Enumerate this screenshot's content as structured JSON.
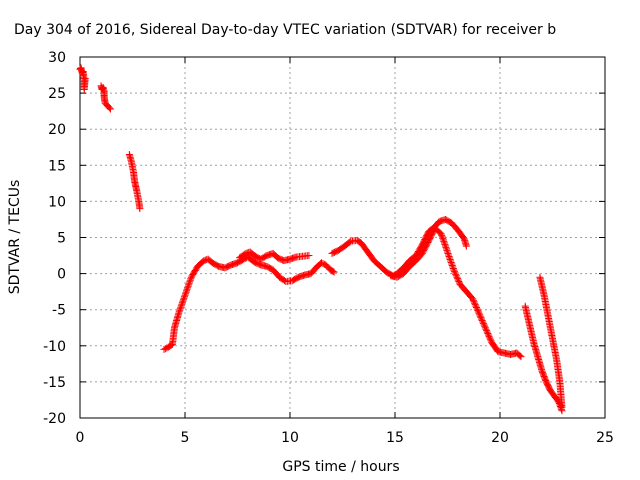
{
  "chart_data": {
    "type": "scatter",
    "title": "Day 304 of 2016, Sidereal Day-to-day VTEC variation (SDTVAR) for receiver b",
    "xlabel": "GPS time / hours",
    "ylabel": "SDTVAR / TECUs",
    "xlim": [
      0,
      25
    ],
    "ylim": [
      -20,
      30
    ],
    "x_ticks": [
      "0",
      "5",
      "10",
      "15",
      "20",
      "25"
    ],
    "y_ticks": [
      "30",
      "25",
      "20",
      "15",
      "10",
      "5",
      "0",
      "-5",
      "-10",
      "-15",
      "-20"
    ],
    "grid": true,
    "legend": "none",
    "marker": "plus",
    "color": "#ff0000",
    "series": [
      {
        "segments": [
          [
            [
              0.0,
              28.3
            ],
            [
              0.05,
              28.5
            ],
            [
              0.1,
              27.8
            ],
            [
              0.15,
              28.0
            ],
            [
              0.2,
              26.8
            ],
            [
              0.2,
              25.5
            ],
            [
              0.25,
              27.0
            ]
          ],
          [
            [
              1.0,
              26.0
            ],
            [
              1.05,
              25.5
            ],
            [
              1.1,
              25.8
            ],
            [
              1.15,
              25.2
            ],
            [
              1.15,
              24.5
            ],
            [
              1.2,
              23.6
            ],
            [
              1.45,
              22.8
            ]
          ],
          [
            [
              2.35,
              16.5
            ],
            [
              2.45,
              15.5
            ],
            [
              2.55,
              14.0
            ],
            [
              2.6,
              12.8
            ],
            [
              2.7,
              11.5
            ],
            [
              2.8,
              10.0
            ],
            [
              2.85,
              9.0
            ]
          ],
          [
            [
              4.0,
              -10.5
            ],
            [
              4.2,
              -10.2
            ],
            [
              4.4,
              -9.8
            ],
            [
              4.5,
              -7.5
            ],
            [
              4.7,
              -5.5
            ],
            [
              5.0,
              -3.0
            ],
            [
              5.3,
              -0.5
            ],
            [
              5.6,
              1.0
            ],
            [
              5.9,
              1.8
            ],
            [
              6.1,
              2.0
            ],
            [
              6.3,
              1.5
            ],
            [
              6.6,
              1.0
            ],
            [
              6.9,
              0.8
            ],
            [
              7.2,
              1.2
            ],
            [
              7.5,
              1.5
            ],
            [
              7.8,
              2.0
            ],
            [
              8.0,
              2.3
            ],
            [
              8.3,
              1.6
            ],
            [
              8.6,
              1.2
            ],
            [
              8.9,
              1.0
            ],
            [
              9.2,
              0.5
            ],
            [
              9.5,
              -0.5
            ],
            [
              9.8,
              -1.1
            ],
            [
              10.1,
              -1.0
            ],
            [
              10.4,
              -0.5
            ],
            [
              10.7,
              -0.2
            ],
            [
              11.0,
              0.0
            ],
            [
              11.3,
              1.0
            ],
            [
              11.5,
              1.5
            ],
            [
              11.7,
              1.2
            ],
            [
              11.9,
              0.6
            ],
            [
              12.1,
              0.2
            ]
          ],
          [
            [
              7.6,
              2.2
            ],
            [
              7.9,
              2.8
            ],
            [
              8.1,
              3.0
            ],
            [
              8.3,
              2.5
            ],
            [
              8.6,
              2.0
            ],
            [
              8.9,
              2.5
            ],
            [
              9.2,
              2.8
            ],
            [
              9.4,
              2.2
            ],
            [
              9.7,
              1.8
            ],
            [
              10.0,
              2.0
            ],
            [
              10.3,
              2.3
            ],
            [
              10.6,
              2.4
            ],
            [
              10.9,
              2.5
            ]
          ],
          [
            [
              12.0,
              2.8
            ],
            [
              12.3,
              3.2
            ],
            [
              12.6,
              3.8
            ],
            [
              12.9,
              4.5
            ],
            [
              13.2,
              4.6
            ],
            [
              13.4,
              4.2
            ],
            [
              13.7,
              3.0
            ],
            [
              14.0,
              1.8
            ],
            [
              14.3,
              1.0
            ],
            [
              14.6,
              0.2
            ],
            [
              14.9,
              -0.3
            ],
            [
              15.1,
              0.0
            ],
            [
              15.4,
              0.8
            ],
            [
              15.7,
              1.8
            ],
            [
              16.0,
              2.5
            ],
            [
              16.3,
              4.0
            ],
            [
              16.6,
              5.8
            ],
            [
              16.9,
              6.5
            ],
            [
              17.1,
              7.2
            ],
            [
              17.4,
              7.5
            ],
            [
              17.7,
              7.0
            ],
            [
              18.0,
              6.0
            ],
            [
              18.3,
              4.8
            ],
            [
              18.4,
              3.8
            ]
          ],
          [
            [
              14.8,
              -0.3
            ],
            [
              15.1,
              -0.5
            ],
            [
              15.4,
              0.0
            ],
            [
              15.7,
              1.0
            ],
            [
              16.0,
              1.8
            ],
            [
              16.3,
              2.8
            ],
            [
              16.6,
              4.5
            ],
            [
              16.9,
              6.3
            ],
            [
              17.2,
              5.5
            ],
            [
              17.5,
              3.0
            ],
            [
              17.8,
              0.5
            ],
            [
              18.1,
              -1.5
            ],
            [
              18.4,
              -2.5
            ],
            [
              18.7,
              -3.5
            ],
            [
              19.0,
              -5.5
            ],
            [
              19.3,
              -7.5
            ],
            [
              19.6,
              -9.5
            ],
            [
              19.9,
              -10.8
            ],
            [
              20.2,
              -11.0
            ],
            [
              20.5,
              -11.2
            ],
            [
              20.8,
              -11.0
            ],
            [
              21.0,
              -11.5
            ]
          ],
          [
            [
              21.2,
              -4.5
            ],
            [
              21.4,
              -7.0
            ],
            [
              21.6,
              -9.5
            ],
            [
              21.8,
              -11.5
            ],
            [
              22.0,
              -13.5
            ],
            [
              22.2,
              -15.0
            ],
            [
              22.4,
              -16.2
            ],
            [
              22.6,
              -17.0
            ],
            [
              22.8,
              -17.8
            ],
            [
              22.95,
              -19.0
            ]
          ],
          [
            [
              21.9,
              -0.5
            ],
            [
              22.1,
              -3.0
            ],
            [
              22.3,
              -6.0
            ],
            [
              22.5,
              -9.0
            ],
            [
              22.7,
              -12.0
            ],
            [
              22.85,
              -15.0
            ],
            [
              22.95,
              -18.5
            ]
          ]
        ]
      }
    ]
  }
}
